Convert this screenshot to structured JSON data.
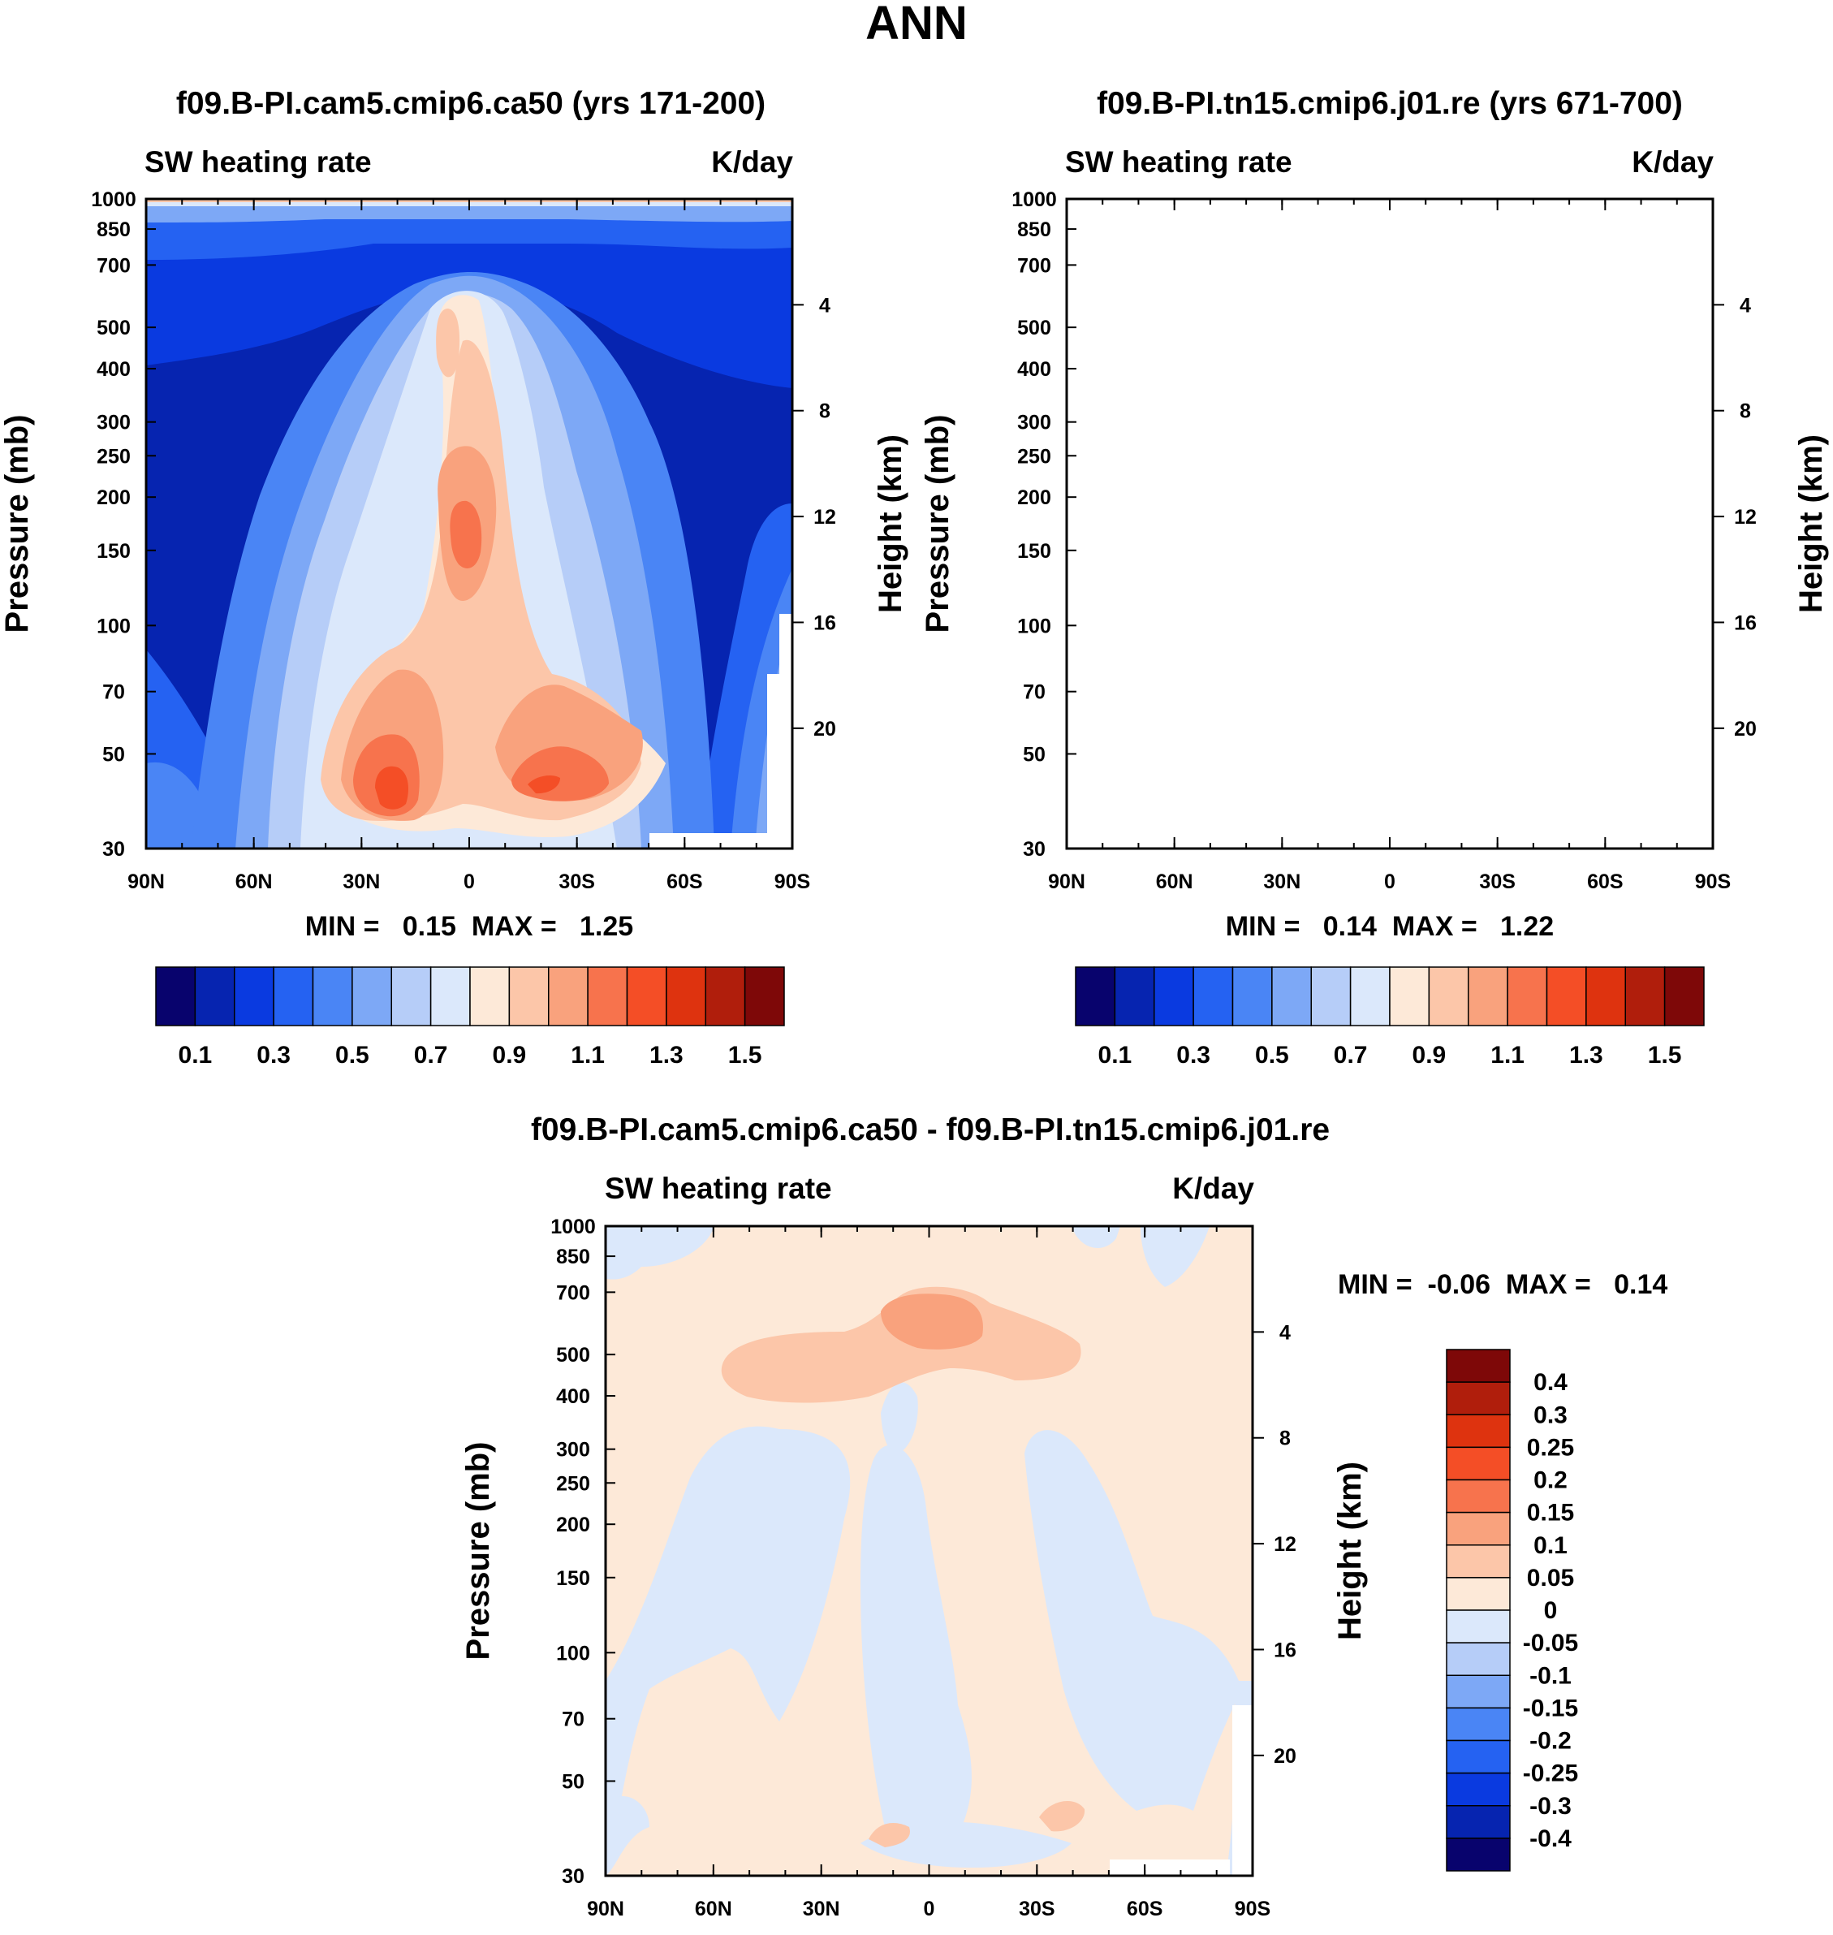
{
  "figure_title": "ANN",
  "pressure_ticks": [
    "30",
    "50",
    "70",
    "100",
    "150",
    "200",
    "250",
    "300",
    "400",
    "500",
    "700",
    "850",
    "1000"
  ],
  "height_ticks": [
    "20",
    "16",
    "12",
    "8",
    "4"
  ],
  "lat_ticks": [
    "90N",
    "60N",
    "30N",
    "0",
    "30S",
    "60S",
    "90S"
  ],
  "left_axis_label": "Pressure (mb)",
  "right_axis_label": "Height (km)",
  "abs_colors": [
    "#08036d",
    "#0624b0",
    "#0a3ae0",
    "#2562f2",
    "#4a85f5",
    "#7da8f6",
    "#b6cdf8",
    "#dbe8fb",
    "#fde9d8",
    "#fcc6a9",
    "#f9a27d",
    "#f7734d",
    "#f44e26",
    "#de330f",
    "#b01e0c",
    "#7e0808"
  ],
  "diff_colors": [
    "#08036d",
    "#0624b0",
    "#0a3ae0",
    "#2562f2",
    "#4a85f5",
    "#7da8f6",
    "#b6cdf8",
    "#dbe8fb",
    "#fde9d8",
    "#fcc6a9",
    "#f9a27d",
    "#f7734d",
    "#f44e26",
    "#de330f",
    "#b01e0c",
    "#7e0808"
  ],
  "chart_data": [
    {
      "type": "contour",
      "title": "f09.B-PI.cam5.cmip6.ca50 (yrs 171-200)",
      "variable": "SW heating rate",
      "units": "K/day",
      "xlabel": "",
      "ylabel": "Pressure (mb)",
      "ylabel_right": "Height (km)",
      "x_range": [
        "90N",
        "90S"
      ],
      "y_range_mb": [
        1000,
        30
      ],
      "stats": "MIN =   0.15  MAX =   1.25",
      "min": 0.15,
      "max": 1.25,
      "colorbar_labels": [
        "0.1",
        "0.3",
        "0.5",
        "0.7",
        "0.9",
        "1.1",
        "1.3",
        "1.5"
      ],
      "levels": [
        0.1,
        0.2,
        0.3,
        0.4,
        0.5,
        0.6,
        0.7,
        0.8,
        0.9,
        1.0,
        1.1,
        1.2,
        1.3,
        1.4,
        1.5
      ]
    },
    {
      "type": "contour",
      "title": "f09.B-PI.tn15.cmip6.j01.re (yrs 671-700)",
      "variable": "SW heating rate",
      "units": "K/day",
      "xlabel": "",
      "ylabel": "Pressure (mb)",
      "ylabel_right": "Height (km)",
      "x_range": [
        "90N",
        "90S"
      ],
      "y_range_mb": [
        1000,
        30
      ],
      "stats": "MIN =   0.14  MAX =   1.22",
      "min": 0.14,
      "max": 1.22,
      "colorbar_labels": [
        "0.1",
        "0.3",
        "0.5",
        "0.7",
        "0.9",
        "1.1",
        "1.3",
        "1.5"
      ],
      "levels": [
        0.1,
        0.2,
        0.3,
        0.4,
        0.5,
        0.6,
        0.7,
        0.8,
        0.9,
        1.0,
        1.1,
        1.2,
        1.3,
        1.4,
        1.5
      ]
    },
    {
      "type": "contour",
      "title": "f09.B-PI.cam5.cmip6.ca50 - f09.B-PI.tn15.cmip6.j01.re",
      "variable": "SW heating rate",
      "units": "K/day",
      "xlabel": "",
      "ylabel": "Pressure (mb)",
      "ylabel_right": "Height (km)",
      "x_range": [
        "90N",
        "90S"
      ],
      "y_range_mb": [
        1000,
        30
      ],
      "stats": "MIN =  -0.06  MAX =   0.14",
      "min": -0.06,
      "max": 0.14,
      "colorbar_labels": [
        "0.4",
        "0.3",
        "0.25",
        "0.2",
        "0.15",
        "0.1",
        "0.05",
        "0",
        "-0.05",
        "-0.1",
        "-0.15",
        "-0.2",
        "-0.25",
        "-0.3",
        "-0.4"
      ],
      "levels": [
        -0.4,
        -0.3,
        -0.25,
        -0.2,
        -0.15,
        -0.1,
        -0.05,
        0,
        0.05,
        0.1,
        0.15,
        0.2,
        0.25,
        0.3,
        0.4
      ]
    }
  ]
}
